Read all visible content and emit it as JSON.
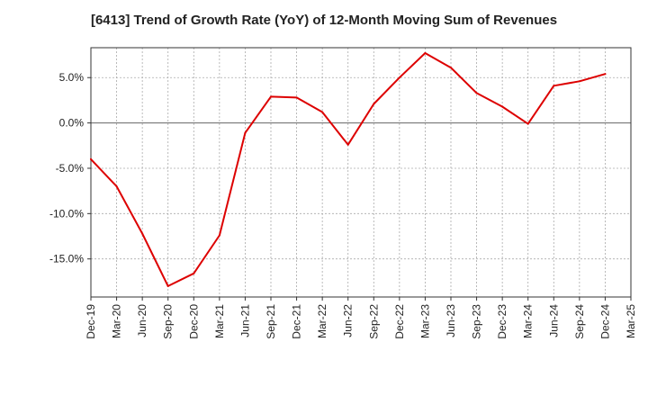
{
  "chart_data": {
    "type": "line",
    "title": "[6413]  Trend of Growth Rate (YoY) of 12-Month Moving Sum of Revenues",
    "xlabel": "",
    "ylabel": "",
    "categories": [
      "Dec-19",
      "Mar-20",
      "Jun-20",
      "Sep-20",
      "Dec-20",
      "Mar-21",
      "Jun-21",
      "Sep-21",
      "Dec-21",
      "Mar-22",
      "Jun-22",
      "Sep-22",
      "Dec-22",
      "Mar-23",
      "Jun-23",
      "Sep-23",
      "Dec-23",
      "Mar-24",
      "Jun-24",
      "Sep-24",
      "Dec-24",
      "Mar-25"
    ],
    "series": [
      {
        "values": [
          -4.0,
          -7.0,
          -12.2,
          -18.0,
          -16.6,
          -12.4,
          -1.1,
          2.9,
          2.8,
          1.2,
          -2.4,
          2.1,
          5.0,
          7.7,
          6.1,
          3.3,
          1.8,
          -0.1,
          4.1,
          4.6,
          5.4,
          null
        ]
      }
    ],
    "y_ticks": [
      5.0,
      0.0,
      -5.0,
      -10.0,
      -15.0
    ],
    "y_tick_labels": [
      "5.0%",
      "0.0%",
      "-5.0%",
      "-10.0%",
      "-15.0%"
    ],
    "ylim": [
      -19.2,
      8.3
    ],
    "grid": true,
    "line_color": "#dd0000",
    "grid_color": "#aaaaaa",
    "zero_line_color": "#666666"
  }
}
